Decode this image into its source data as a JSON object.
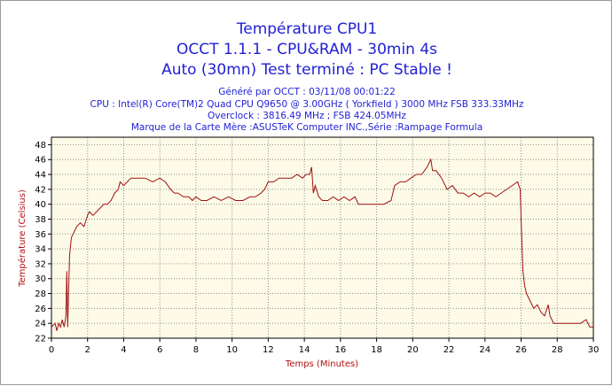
{
  "header": {
    "title_lines": [
      "Température CPU1",
      "OCCT 1.1.1 - CPU&RAM - 30min 4s",
      "Auto (30mn) Test terminé : PC Stable !"
    ],
    "info_lines": [
      "Généré par OCCT : 03/11/08 00:01:22",
      "CPU : Intel(R) Core(TM)2 Quad CPU Q9650 @ 3.00GHz ( Yorkfield ) 3000 MHz FSB 333.33MHz",
      "Overclock : 3816.49 MHz ; FSB 424.05MHz",
      "Marque de la Carte Mère :ASUSTeK Computer INC.,Série :Rampage Formula"
    ]
  },
  "colors": {
    "title": "#1f1fd6",
    "axis_label": "#b01010",
    "line": "#a01010",
    "plot_bg": "#fdfbe8",
    "grid": "#8c8c8c"
  },
  "chart_data": {
    "type": "line",
    "xlabel": "Temps (Minutes)",
    "ylabel": "Température (Celsius)",
    "xlim": [
      0,
      30
    ],
    "ylim": [
      22,
      49
    ],
    "xticks": [
      0,
      2,
      4,
      6,
      8,
      10,
      12,
      14,
      16,
      18,
      20,
      22,
      24,
      26,
      28,
      30
    ],
    "yticks": [
      22,
      24,
      26,
      28,
      30,
      32,
      34,
      36,
      38,
      40,
      42,
      44,
      46,
      48
    ],
    "grid": true,
    "series": [
      {
        "x": [
          0,
          0.2,
          0.3,
          0.4,
          0.5,
          0.6,
          0.7,
          0.8,
          0.85,
          0.9,
          0.95,
          1.0,
          1.1,
          1.2,
          1.4,
          1.6,
          1.8,
          2.0,
          2.1,
          2.3,
          2.5,
          2.7,
          2.9,
          3.1,
          3.3,
          3.5,
          3.7,
          3.8,
          4.0,
          4.2,
          4.4,
          4.8,
          5.2,
          5.6,
          6.0,
          6.3,
          6.6,
          6.8,
          7.0,
          7.3,
          7.6,
          7.8,
          8.0,
          8.3,
          8.6,
          9.0,
          9.4,
          9.8,
          10.2,
          10.6,
          11.0,
          11.3,
          11.6,
          11.8,
          12.0,
          12.3,
          12.6,
          13.0,
          13.3,
          13.6,
          13.9,
          14.1,
          14.3,
          14.4,
          14.5,
          14.6,
          14.8,
          15.0,
          15.3,
          15.6,
          15.9,
          16.2,
          16.5,
          16.8,
          17.0,
          17.5,
          18.0,
          18.4,
          18.8,
          19.0,
          19.3,
          19.6,
          19.9,
          20.2,
          20.5,
          20.8,
          21.0,
          21.1,
          21.3,
          21.6,
          21.9,
          22.2,
          22.5,
          22.8,
          23.1,
          23.4,
          23.7,
          24.0,
          24.3,
          24.6,
          24.9,
          25.2,
          25.5,
          25.8,
          25.95,
          26.0,
          26.1,
          26.2,
          26.3,
          26.5,
          26.7,
          26.9,
          27.1,
          27.3,
          27.5,
          27.6,
          27.7,
          27.8,
          28.0,
          28.3,
          28.6,
          29.0,
          29.3,
          29.6,
          29.8,
          30.0
        ],
        "y": [
          23.5,
          24.0,
          23.0,
          24.0,
          23.5,
          24.5,
          23.5,
          25.0,
          31.0,
          23.5,
          28.0,
          33.0,
          35.5,
          36.0,
          37.0,
          37.5,
          37.0,
          38.5,
          39.0,
          38.5,
          39.0,
          39.5,
          40.0,
          40.0,
          40.5,
          41.5,
          42.0,
          43.0,
          42.5,
          43.0,
          43.5,
          43.5,
          43.5,
          43.0,
          43.5,
          43.0,
          42.0,
          41.5,
          41.5,
          41.0,
          41.0,
          40.5,
          41.0,
          40.5,
          40.5,
          41.0,
          40.5,
          41.0,
          40.5,
          40.5,
          41.0,
          41.0,
          41.5,
          42.0,
          43.0,
          43.0,
          43.5,
          43.5,
          43.5,
          44.0,
          43.5,
          44.0,
          44.0,
          45.0,
          41.5,
          42.5,
          41.0,
          40.5,
          40.5,
          41.0,
          40.5,
          41.0,
          40.5,
          41.0,
          40.0,
          40.0,
          40.0,
          40.0,
          40.5,
          42.5,
          43.0,
          43.0,
          43.5,
          44.0,
          44.0,
          45.0,
          46.0,
          44.5,
          44.5,
          43.5,
          42.0,
          42.5,
          41.5,
          41.5,
          41.0,
          41.5,
          41.0,
          41.5,
          41.5,
          41.0,
          41.5,
          42.0,
          42.5,
          43.0,
          42.0,
          38.0,
          31.0,
          29.0,
          28.0,
          27.0,
          26.0,
          26.5,
          25.5,
          25.0,
          26.5,
          25.0,
          24.5,
          24.0,
          24.0,
          24.0,
          24.0,
          24.0,
          24.0,
          24.5,
          23.5,
          23.5
        ]
      }
    ]
  }
}
